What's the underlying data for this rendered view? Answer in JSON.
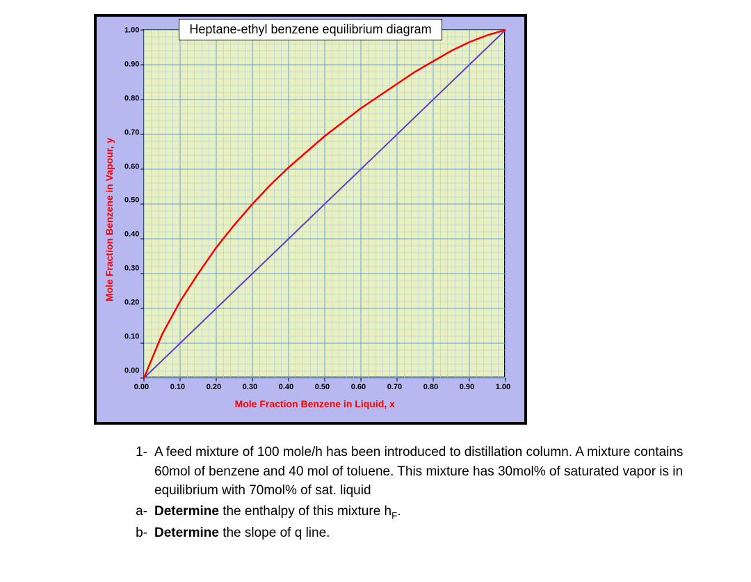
{
  "chart": {
    "title": "Heptane-ethyl benzene equilibrium diagram",
    "xlabel": "Mole Fraction Benzene in Liquid, x",
    "ylabel": "Mole Fraction Benzene in Vapour, y",
    "xlabel_color": "#ff0000",
    "ylabel_color": "#ff0000",
    "background_color": "#b8b8f0",
    "plot_bg_color": "#e8f0c0",
    "grid_major_color": "#60a0e0",
    "grid_minor_color": "#a0c8f0",
    "xlim": [
      0.0,
      1.0
    ],
    "ylim": [
      0.0,
      1.0
    ],
    "tick_step": 0.1,
    "minor_divisions": 5,
    "xticks": [
      "0.00",
      "0.10",
      "0.20",
      "0.30",
      "0.40",
      "0.50",
      "0.60",
      "0.70",
      "0.80",
      "0.90",
      "1.00"
    ],
    "yticks": [
      "1.00",
      "0.90",
      "0.80",
      "0.70",
      "0.60",
      "0.50",
      "0.40",
      "0.30",
      "0.20",
      "0.10",
      "0.00"
    ],
    "diagonal": {
      "color": "#6040c0",
      "width": 2,
      "x": [
        0.0,
        1.0
      ],
      "y": [
        0.0,
        1.0
      ]
    },
    "equilibrium_curve": {
      "color": "#ff0000",
      "width": 2.5,
      "points": [
        [
          0.0,
          0.0
        ],
        [
          0.05,
          0.125
        ],
        [
          0.1,
          0.22
        ],
        [
          0.15,
          0.3
        ],
        [
          0.2,
          0.375
        ],
        [
          0.25,
          0.44
        ],
        [
          0.3,
          0.5
        ],
        [
          0.35,
          0.555
        ],
        [
          0.4,
          0.605
        ],
        [
          0.45,
          0.65
        ],
        [
          0.5,
          0.695
        ],
        [
          0.55,
          0.735
        ],
        [
          0.6,
          0.775
        ],
        [
          0.65,
          0.81
        ],
        [
          0.7,
          0.845
        ],
        [
          0.75,
          0.88
        ],
        [
          0.8,
          0.91
        ],
        [
          0.85,
          0.94
        ],
        [
          0.9,
          0.965
        ],
        [
          0.95,
          0.985
        ],
        [
          1.0,
          1.0
        ]
      ]
    },
    "tick_fontsize": 11,
    "label_fontsize": 14,
    "title_fontsize": 18
  },
  "questions": {
    "q1_marker": "1-",
    "q1_text": "A feed mixture of 100 mole/h has been introduced to distillation column. A mixture contains 60mol of benzene and 40 mol of toluene. This mixture has 30mol% of saturated vapor is in equilibrium with 70mol% of sat. liquid",
    "a_marker": "a-",
    "a_prefix": "Determine",
    "a_rest": " the enthalpy of this mixture h",
    "a_sub": "F",
    "a_tail": ".",
    "b_marker": "b-",
    "b_prefix": "Determine",
    "b_rest": " the slope of q line."
  }
}
